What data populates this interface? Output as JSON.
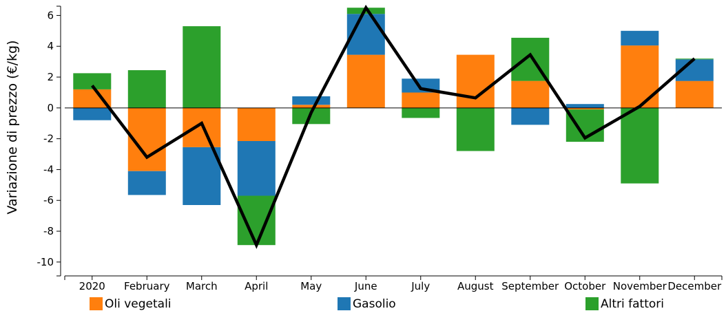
{
  "chart_data": {
    "type": "bar",
    "stacked": true,
    "ylabel": "Variazione di prezzo (€/kg)",
    "ylim": [
      -10.9,
      6.6
    ],
    "yticks": [
      6,
      4,
      2,
      0,
      -2,
      -4,
      -6,
      -8,
      -10
    ],
    "categories": [
      "2020",
      "February",
      "March",
      "April",
      "May",
      "June",
      "July",
      "August",
      "September",
      "October",
      "November",
      "December"
    ],
    "series": [
      {
        "name": "Oli vegetali",
        "color": "#ff7f0e",
        "values": [
          1.2,
          -4.1,
          -2.55,
          -2.15,
          0.2,
          3.45,
          1.0,
          3.45,
          1.75,
          -0.1,
          4.05,
          1.75
        ]
      },
      {
        "name": "Gasolio",
        "color": "#1f77b4",
        "values": [
          -0.8,
          -1.55,
          -3.75,
          -3.55,
          0.55,
          2.65,
          0.9,
          0.0,
          -1.1,
          0.25,
          0.95,
          1.4
        ]
      },
      {
        "name": "Altri fattori",
        "color": "#2ca02c",
        "values": [
          1.05,
          2.45,
          5.3,
          -3.2,
          -1.05,
          0.4,
          -0.65,
          -2.8,
          2.8,
          -2.1,
          -4.9,
          0.05
        ]
      }
    ],
    "line": {
      "color": "#000000",
      "values": [
        1.45,
        -3.2,
        -1.0,
        -8.9,
        -0.3,
        6.5,
        1.25,
        0.65,
        3.45,
        -1.95,
        0.1,
        3.2
      ]
    },
    "legend_position": "bottom",
    "grid": false
  }
}
